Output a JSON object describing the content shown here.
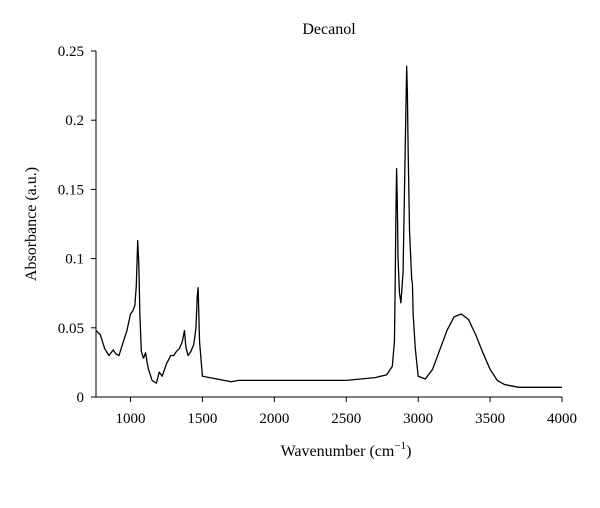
{
  "chart_data": {
    "type": "line",
    "title": "Decanol",
    "xlabel": "Wavenumber (cm",
    "xlabel_sup": "−1",
    "xlabel_suffix": ")",
    "ylabel": "Absorbance (a.u.)",
    "xlim": [
      760,
      4000
    ],
    "ylim": [
      0,
      0.25
    ],
    "xticks": [
      1000,
      1500,
      2000,
      2500,
      3000,
      3500,
      4000
    ],
    "xtick_labels": [
      "1000",
      "1500",
      "2000",
      "2500",
      "3000",
      "3500",
      "4000"
    ],
    "yticks": [
      0,
      0.05,
      0.1,
      0.15,
      0.2,
      0.25
    ],
    "ytick_labels": [
      "0",
      "0.05",
      "0.1",
      "0.15",
      "0.2",
      "0.25"
    ],
    "grid": false,
    "line_color": "#000000",
    "series": [
      {
        "x": [
          760,
          790,
          820,
          850,
          880,
          900,
          920,
          950,
          975,
          1000,
          1015,
          1030,
          1040,
          1050,
          1058,
          1065,
          1075,
          1090,
          1105,
          1115,
          1125,
          1150,
          1180,
          1200,
          1220,
          1250,
          1280,
          1300,
          1320,
          1340,
          1360,
          1375,
          1385,
          1400,
          1420,
          1440,
          1455,
          1464,
          1470,
          1480,
          1500,
          1550,
          1600,
          1650,
          1700,
          1750,
          1800,
          2000,
          2200,
          2350,
          2500,
          2600,
          2700,
          2780,
          2820,
          2835,
          2840,
          2845,
          2850,
          2855,
          2860,
          2870,
          2880,
          2895,
          2905,
          2915,
          2920,
          2925,
          2930,
          2940,
          2955,
          2960,
          2965,
          2980,
          3000,
          3050,
          3100,
          3150,
          3200,
          3250,
          3300,
          3350,
          3400,
          3450,
          3500,
          3550,
          3600,
          3650,
          3700,
          3800,
          3900,
          4000
        ],
        "y": [
          0.048,
          0.045,
          0.035,
          0.03,
          0.034,
          0.031,
          0.03,
          0.04,
          0.048,
          0.06,
          0.062,
          0.066,
          0.08,
          0.113,
          0.095,
          0.06,
          0.033,
          0.028,
          0.032,
          0.025,
          0.02,
          0.012,
          0.01,
          0.018,
          0.015,
          0.024,
          0.03,
          0.03,
          0.033,
          0.035,
          0.04,
          0.048,
          0.036,
          0.03,
          0.033,
          0.038,
          0.05,
          0.073,
          0.079,
          0.04,
          0.015,
          0.014,
          0.013,
          0.012,
          0.011,
          0.012,
          0.012,
          0.012,
          0.012,
          0.012,
          0.012,
          0.013,
          0.014,
          0.016,
          0.022,
          0.04,
          0.08,
          0.13,
          0.165,
          0.14,
          0.1,
          0.075,
          0.068,
          0.09,
          0.15,
          0.21,
          0.239,
          0.22,
          0.18,
          0.12,
          0.085,
          0.082,
          0.06,
          0.035,
          0.015,
          0.013,
          0.02,
          0.034,
          0.048,
          0.058,
          0.06,
          0.056,
          0.045,
          0.032,
          0.02,
          0.012,
          0.009,
          0.008,
          0.007,
          0.007,
          0.007,
          0.007
        ]
      }
    ]
  }
}
